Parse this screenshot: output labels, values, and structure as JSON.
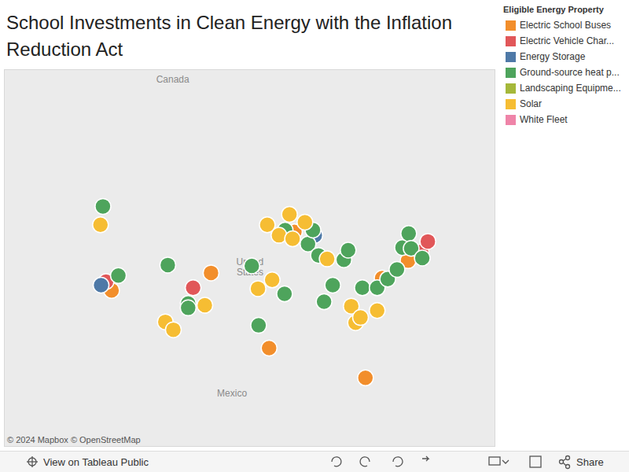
{
  "chart_data": {
    "type": "scatter",
    "title": "School Investments in Clean Energy with the Inflation Reduction Act",
    "legend_title": "Eligible Energy Property",
    "xlim": [
      -138.5,
      -59.2
    ],
    "ylim": [
      17,
      60
    ],
    "tick_labels": false,
    "series": [
      {
        "name": "Electric School Buses",
        "color": "#f28e2b",
        "x": [
          -105.1,
          -121.2,
          -95.7,
          -80.1,
          -91.6,
          -77.4,
          -73.2
        ],
        "values": [
          36.8,
          34.8,
          28.2,
          24.8,
          41.5,
          36.2,
          38.2
        ]
      },
      {
        "name": "Electric Vehicle Char...",
        "color": "#e15759",
        "x": [
          -122.1,
          -108.0,
          -71.1,
          -70.0
        ],
        "values": [
          35.8,
          35.1,
          39.2,
          40.4
        ]
      },
      {
        "name": "Energy Storage",
        "color": "#4e79a7",
        "x": [
          -122.9,
          -88.3
        ],
        "values": [
          35.4,
          41.1
        ]
      },
      {
        "name": "Ground-source heat p...",
        "color": "#4ea45c",
        "x": [
          -122.6,
          -120.1,
          -112.1,
          -108.8,
          -108.8,
          -97.4,
          -98.5,
          -93.2,
          -93.1,
          -89.4,
          -87.7,
          -83.6,
          -82.9,
          -85.4,
          -86.8,
          -80.6,
          -78.2,
          -76.5,
          -75.0,
          -74.1,
          -73.1,
          -72.7,
          -70.9,
          -88.6
        ],
        "values": [
          44.4,
          36.5,
          37.7,
          33.3,
          32.8,
          30.8,
          37.6,
          34.4,
          41.7,
          40.1,
          38.8,
          38.3,
          39.4,
          35.4,
          33.5,
          35.1,
          35.1,
          36.1,
          37.2,
          39.7,
          41.3,
          39.6,
          38.5,
          41.7
        ]
      },
      {
        "name": "Landscaping Equipme...",
        "color": "#a5b83a",
        "x": [],
        "values": []
      },
      {
        "name": "Solar",
        "color": "#f6bd33",
        "x": [
          -123.0,
          -112.5,
          -111.2,
          -106.1,
          -97.5,
          -95.2,
          -96.0,
          -92.4,
          -94.1,
          -89.9,
          -86.3,
          -82.4,
          -78.2,
          -81.7,
          -80.9,
          -91.9
        ],
        "values": [
          42.3,
          31.2,
          30.3,
          33.1,
          35.0,
          36.0,
          42.3,
          43.5,
          41.1,
          42.6,
          38.4,
          33.0,
          32.5,
          31.1,
          31.7,
          40.7
        ]
      },
      {
        "name": "White Fleet",
        "color": "#ef84a8",
        "x": [],
        "values": []
      }
    ],
    "annotations": [
      {
        "text": "Canada",
        "x": -111.3,
        "y": 58.8
      },
      {
        "text": "United States",
        "x": -98.8,
        "y": 37.4
      },
      {
        "text": "Mexico",
        "x": -101.7,
        "y": 22.9
      }
    ],
    "attribution": "© 2024 Mapbox  © OpenStreetMap",
    "toolbar": [
      "View on Tableau Public",
      "Share"
    ]
  }
}
